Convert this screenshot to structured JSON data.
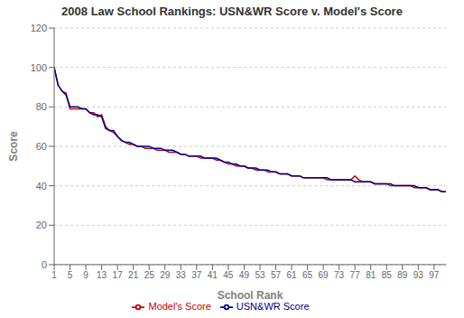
{
  "chart_data": {
    "type": "line",
    "title": "2008 Law School Rankings:  USN&WR Score v. Model's Score",
    "xlabel": "School Rank",
    "ylabel": "Score",
    "x": [
      1,
      2,
      3,
      4,
      5,
      6,
      7,
      8,
      9,
      10,
      11,
      12,
      13,
      14,
      15,
      16,
      17,
      18,
      19,
      20,
      21,
      22,
      23,
      24,
      25,
      26,
      27,
      28,
      29,
      30,
      31,
      32,
      33,
      34,
      35,
      36,
      37,
      38,
      39,
      40,
      41,
      42,
      43,
      44,
      45,
      46,
      47,
      48,
      49,
      50,
      51,
      52,
      53,
      54,
      55,
      56,
      57,
      58,
      59,
      60,
      61,
      62,
      63,
      64,
      65,
      66,
      67,
      68,
      69,
      70,
      71,
      72,
      73,
      74,
      75,
      76,
      77,
      78,
      79,
      80,
      81,
      82,
      83,
      84,
      85,
      86,
      87,
      88,
      89,
      90,
      91,
      92,
      93,
      94,
      95,
      96,
      97,
      98,
      99,
      100
    ],
    "series": [
      {
        "name": "Model's Score",
        "color": "#cc0000",
        "values": [
          100,
          91,
          88,
          87,
          79,
          79,
          79,
          79,
          79,
          77,
          77,
          75,
          76,
          70,
          68,
          67,
          65,
          63,
          62,
          61,
          61,
          60,
          60,
          59,
          59,
          59,
          58,
          58,
          58,
          57,
          57,
          57,
          56,
          56,
          55,
          55,
          55,
          54,
          54,
          54,
          54,
          53,
          53,
          52,
          51,
          51,
          50,
          50,
          50,
          49,
          49,
          48,
          48,
          48,
          47,
          47,
          47,
          46,
          46,
          46,
          45,
          45,
          45,
          44,
          44,
          44,
          44,
          44,
          44,
          43,
          43,
          43,
          43,
          43,
          43,
          43,
          45,
          43,
          42,
          42,
          42,
          41,
          41,
          41,
          41,
          40,
          40,
          40,
          40,
          40,
          40,
          39,
          39,
          39,
          39,
          38,
          38,
          38,
          37,
          37
        ]
      },
      {
        "name": "USN&WR Score",
        "color": "#00008b",
        "values": [
          100,
          91,
          88,
          86,
          80,
          80,
          80,
          79,
          79,
          77,
          76,
          76,
          75,
          69,
          68,
          68,
          65,
          63,
          62,
          62,
          61,
          60,
          60,
          60,
          60,
          59,
          59,
          59,
          58,
          58,
          58,
          57,
          56,
          56,
          55,
          55,
          55,
          55,
          54,
          54,
          54,
          54,
          53,
          52,
          52,
          51,
          51,
          50,
          50,
          49,
          49,
          49,
          48,
          48,
          48,
          47,
          47,
          46,
          46,
          46,
          45,
          45,
          45,
          44,
          44,
          44,
          44,
          44,
          44,
          44,
          43,
          43,
          43,
          43,
          43,
          43,
          42,
          42,
          42,
          42,
          42,
          41,
          41,
          41,
          41,
          41,
          40,
          40,
          40,
          40,
          40,
          40,
          39,
          39,
          39,
          38,
          38,
          38,
          37,
          37
        ]
      }
    ],
    "xlim": [
      1,
      100
    ],
    "xticks": [
      1,
      5,
      9,
      13,
      17,
      21,
      25,
      29,
      33,
      37,
      41,
      45,
      49,
      53,
      57,
      61,
      65,
      69,
      73,
      77,
      81,
      85,
      89,
      93,
      97
    ],
    "ylim": [
      0,
      120
    ],
    "yticks": [
      0,
      20,
      40,
      60,
      80,
      100,
      120
    ],
    "grid": true,
    "legend": "bottom"
  }
}
